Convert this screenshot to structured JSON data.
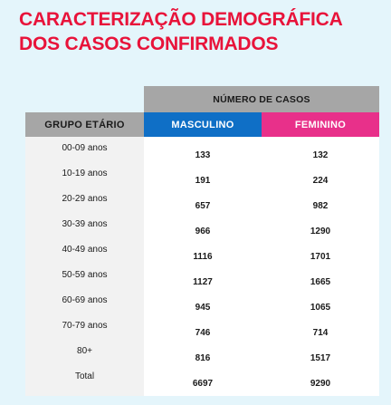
{
  "title": "CARACTERIZAÇÃO DEMOGRÁFICA DOS CASOS CONFIRMADOS",
  "colors": {
    "title": "#e8133a",
    "header_gray": "#a6a6a6",
    "masculino": "#0f6fc6",
    "feminino": "#e8308a",
    "background": "#e4f5fb"
  },
  "chart_data": {
    "type": "table",
    "title": "CARACTERIZAÇÃO DEMOGRÁFICA DOS CASOS CONFIRMADOS",
    "group_header": "NÚMERO DE CASOS",
    "row_header": "GRUPO ETÁRIO",
    "columns": [
      "MASCULINO",
      "FEMININO"
    ],
    "rows": [
      {
        "label": "00-09 anos",
        "values": [
          "133",
          "132"
        ]
      },
      {
        "label": "10-19 anos",
        "values": [
          "191",
          "224"
        ]
      },
      {
        "label": "20-29 anos",
        "values": [
          "657",
          "982"
        ]
      },
      {
        "label": "30-39 anos",
        "values": [
          "966",
          "1290"
        ]
      },
      {
        "label": "40-49 anos",
        "values": [
          "1116",
          "1701"
        ]
      },
      {
        "label": "50-59 anos",
        "values": [
          "1127",
          "1665"
        ]
      },
      {
        "label": "60-69 anos",
        "values": [
          "945",
          "1065"
        ]
      },
      {
        "label": "70-79 anos",
        "values": [
          "746",
          "714"
        ]
      },
      {
        "label": "80+",
        "values": [
          "816",
          "1517"
        ]
      },
      {
        "label": "Total",
        "values": [
          "6697",
          "9290"
        ]
      }
    ]
  }
}
